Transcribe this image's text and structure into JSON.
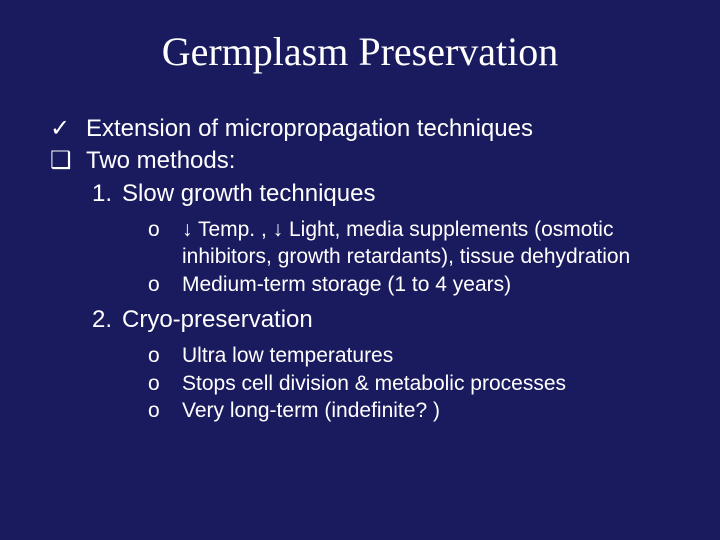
{
  "colors": {
    "background": "#1a1a5e",
    "text": "#ffffff"
  },
  "typography": {
    "title_family": "Times New Roman",
    "title_size_pt": 40,
    "body_family": "Arial",
    "body_size_pt": 24,
    "sub_size_pt": 21
  },
  "title": "Germplasm Preservation",
  "bullets": {
    "b1_mark": "✓",
    "b1_text": "Extension of micropropagation techniques",
    "b2_mark": "❑",
    "b2_text": "Two methods:"
  },
  "methods": {
    "m1_num": "1.",
    "m1_text": "Slow growth techniques",
    "m1_sub": {
      "s1_mark": "o",
      "s1_text": "↓ Temp. , ↓ Light, media supplements (osmotic inhibitors, growth retardants), tissue dehydration",
      "s2_mark": "o",
      "s2_text": "Medium-term storage (1 to 4 years)"
    },
    "m2_num": "2.",
    "m2_text": "Cryo-preservation",
    "m2_sub": {
      "s1_mark": "o",
      "s1_text": "Ultra low temperatures",
      "s2_mark": "o",
      "s2_text": "Stops cell division & metabolic processes",
      "s3_mark": "o",
      "s3_text": "Very long-term (indefinite? )"
    }
  }
}
